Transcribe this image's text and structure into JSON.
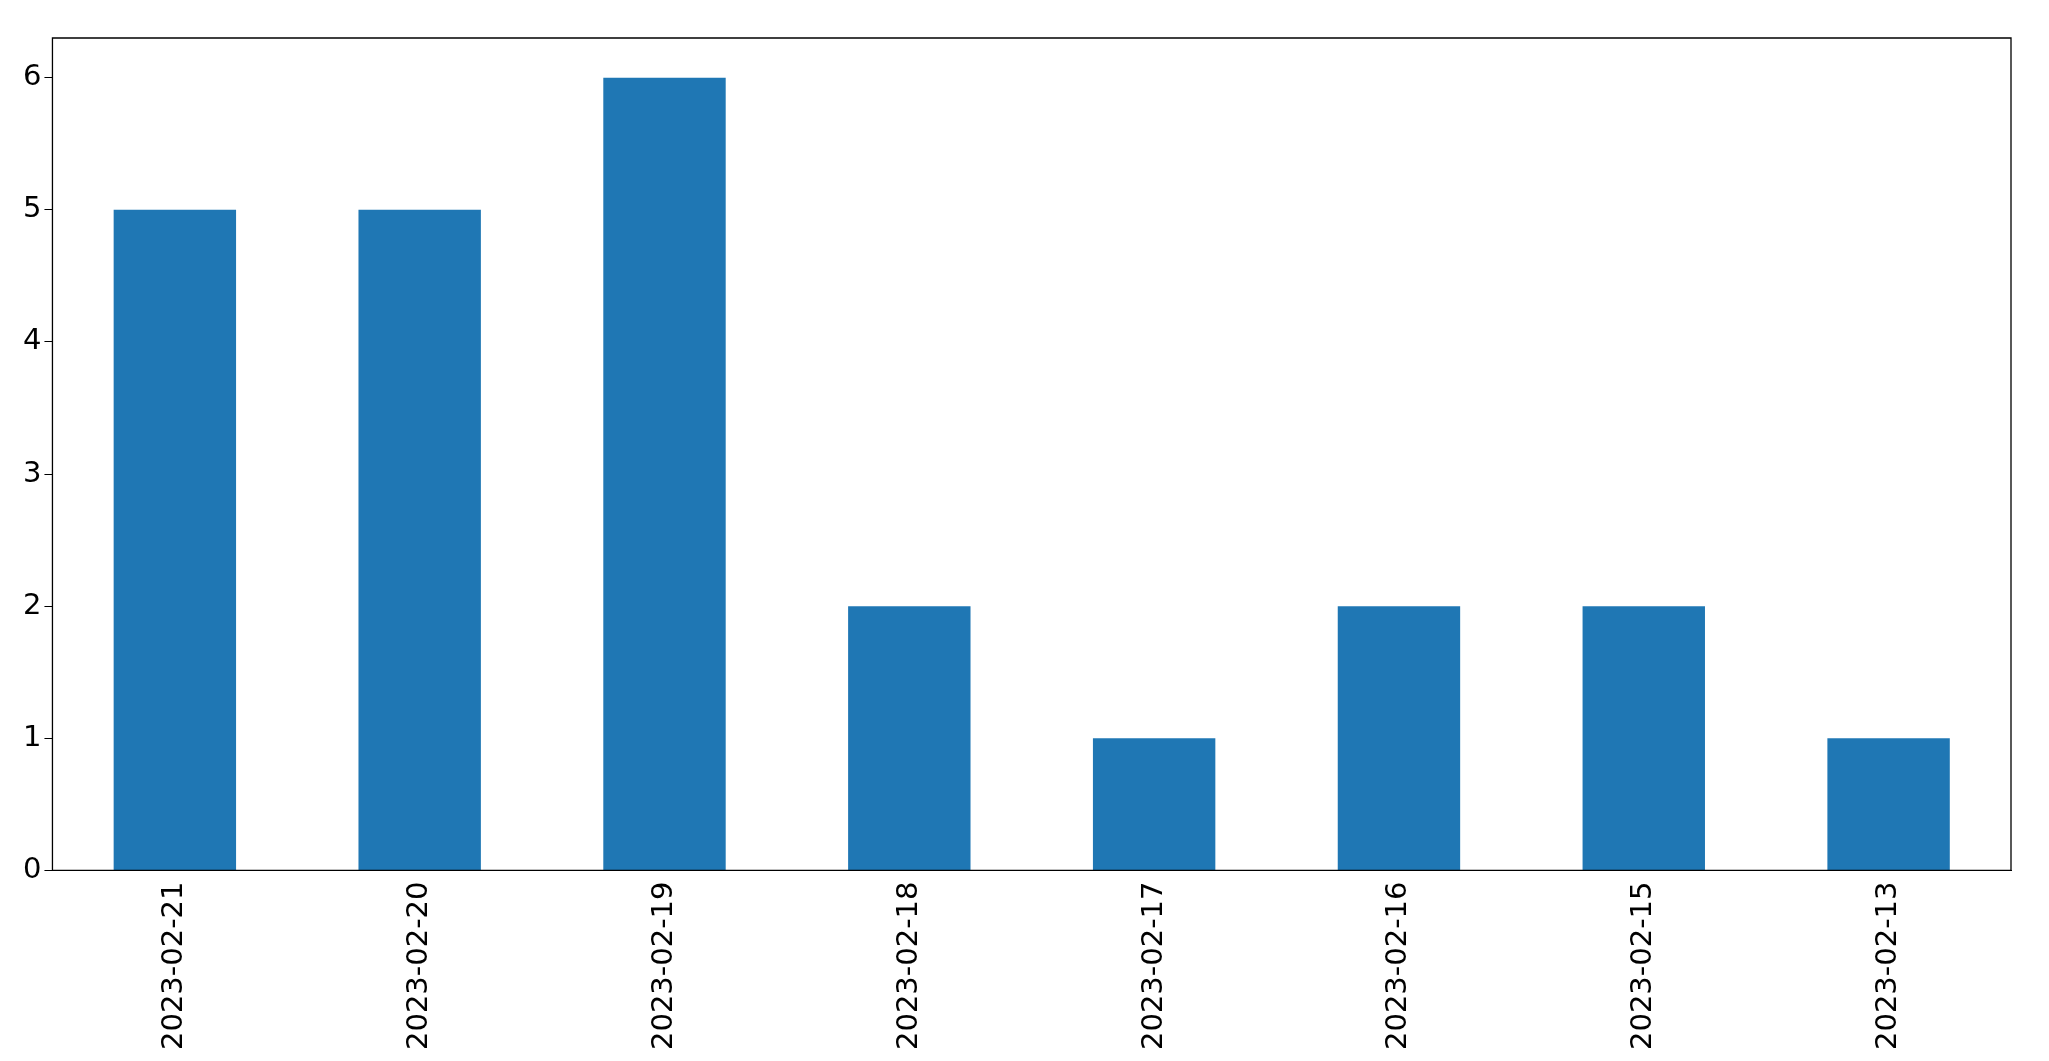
{
  "chart_data": {
    "type": "bar",
    "categories": [
      "2023-02-21",
      "2023-02-20",
      "2023-02-19",
      "2023-02-18",
      "2023-02-17",
      "2023-02-16",
      "2023-02-15",
      "2023-02-13"
    ],
    "values": [
      5,
      5,
      6,
      2,
      1,
      2,
      2,
      1
    ],
    "color": "#1f77b4",
    "ylim": [
      0,
      6.3
    ],
    "yticks": [
      0,
      1,
      2,
      3,
      4,
      5,
      6
    ],
    "grid": false,
    "legend": false
  }
}
